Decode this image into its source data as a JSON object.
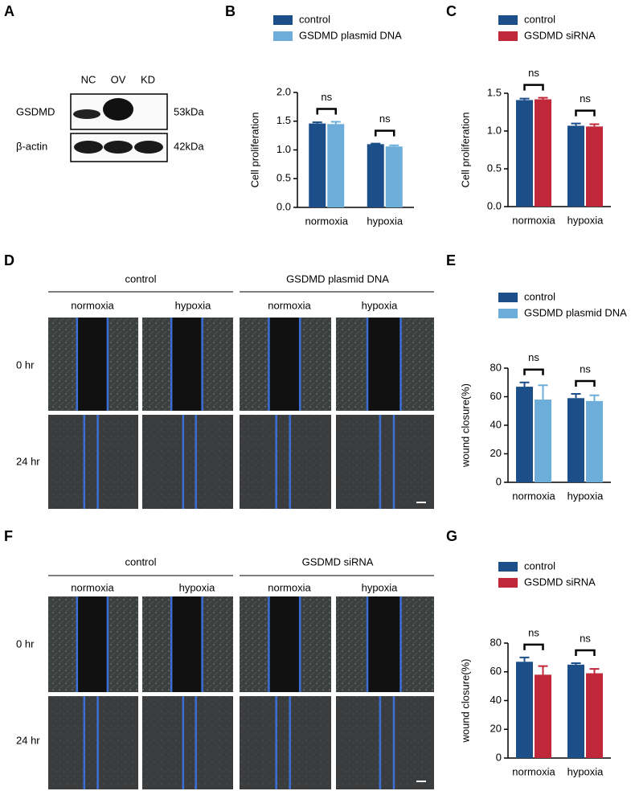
{
  "panels": [
    "A",
    "B",
    "C",
    "D",
    "E",
    "F",
    "G"
  ],
  "western_blot": {
    "lanes": [
      "NC",
      "OV",
      "KD"
    ],
    "rows": [
      {
        "label": "GSDMD",
        "size": "53kDa"
      },
      {
        "label": "β-actin",
        "size": "42kDa"
      }
    ]
  },
  "wound_d": {
    "groups": [
      "control",
      "GSDMD plasmid DNA"
    ],
    "columns": [
      "normoxia",
      "hypoxia",
      "normoxia",
      "hypoxia"
    ],
    "times": [
      "0 hr",
      "24 hr"
    ]
  },
  "wound_f": {
    "groups": [
      "control",
      "GSDMD siRNA"
    ],
    "columns": [
      "normoxia",
      "hypoxia",
      "normoxia",
      "hypoxia"
    ],
    "times": [
      "0 hr",
      "24 hr"
    ]
  },
  "chart_data": [
    {
      "type": "bar",
      "y_label": "Cell proliferation",
      "categories": [
        "normoxia",
        "hypoxia"
      ],
      "series": [
        {
          "name": "control",
          "color": "#1c4e8a",
          "values": [
            1.46,
            1.1
          ],
          "errors": [
            0.02,
            0.01
          ]
        },
        {
          "name": "GSDMD plasmid DNA",
          "color": "#6caed9",
          "values": [
            1.45,
            1.06
          ],
          "errors": [
            0.04,
            0.02
          ]
        }
      ],
      "annotations": [
        "ns",
        "ns"
      ],
      "ylim": [
        0,
        2
      ],
      "yticks": [
        {
          "value": 0,
          "label": "0.0"
        },
        0.5,
        {
          "value": 1,
          "label": "1.0"
        },
        1.5,
        {
          "value": 2,
          "label": "2.0"
        }
      ],
      "grid": false
    },
    {
      "type": "bar",
      "y_label": "Cell proliferation",
      "categories": [
        "normoxia",
        "hypoxia"
      ],
      "series": [
        {
          "name": "control",
          "color": "#1c4e8a",
          "values": [
            1.41,
            1.07
          ],
          "errors": [
            0.02,
            0.03
          ]
        },
        {
          "name": "GSDMD siRNA",
          "color": "#c0283a",
          "values": [
            1.42,
            1.06
          ],
          "errors": [
            0.02,
            0.03
          ]
        }
      ],
      "annotations": [
        "ns",
        "ns"
      ],
      "ylim": [
        0,
        1.5
      ],
      "yticks": [
        {
          "value": 0,
          "label": "0.0"
        },
        0.5,
        {
          "value": 1,
          "label": "1.0"
        },
        1.5
      ],
      "grid": false
    },
    {
      "type": "bar",
      "y_label": "wound closure(%)",
      "categories": [
        "normoxia",
        "hypoxia"
      ],
      "series": [
        {
          "name": "control",
          "color": "#1c4e8a",
          "values": [
            67,
            59
          ],
          "errors": [
            3,
            3
          ]
        },
        {
          "name": "GSDMD plasmid DNA",
          "color": "#6caed9",
          "values": [
            58,
            57
          ],
          "errors": [
            10,
            4
          ]
        }
      ],
      "annotations": [
        "ns",
        "ns"
      ],
      "ylim": [
        0,
        80
      ],
      "yticks": [
        0,
        20,
        40,
        60,
        80
      ],
      "grid": false
    },
    {
      "type": "bar",
      "y_label": "wound closure(%)",
      "categories": [
        "normoxia",
        "hypoxia"
      ],
      "series": [
        {
          "name": "control",
          "color": "#1c4e8a",
          "values": [
            67,
            65
          ],
          "errors": [
            3,
            1
          ]
        },
        {
          "name": "GSDMD siRNA",
          "color": "#c0283a",
          "values": [
            58,
            59
          ],
          "errors": [
            6,
            3
          ]
        }
      ],
      "annotations": [
        "ns",
        "ns"
      ],
      "ylim": [
        0,
        80
      ],
      "yticks": [
        0,
        20,
        40,
        60,
        80
      ],
      "grid": false
    }
  ]
}
